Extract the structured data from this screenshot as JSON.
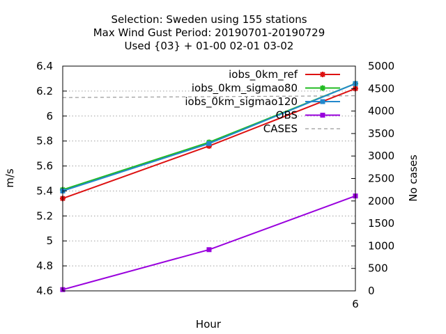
{
  "chart_data": {
    "type": "line",
    "title_lines": [
      "Selection: Sweden using   155 stations",
      "Max Wind Gust   Period: 20190701-20190729",
      "Used {03} + 01-00 02-01 03-02"
    ],
    "xlabel": "Hour",
    "ylabel": "m/s",
    "y2label": "No cases",
    "x": [
      0,
      3,
      6
    ],
    "x_tick_labels": [
      {
        "value": 6,
        "label": "6"
      }
    ],
    "xlim": [
      0,
      6
    ],
    "ylim": [
      4.6,
      6.4
    ],
    "y_ticks": [
      4.6,
      4.8,
      5,
      5.2,
      5.4,
      5.6,
      5.8,
      6,
      6.2,
      6.4
    ],
    "y_tick_labels": [
      "4.6",
      "4.8",
      "5",
      "5.2",
      "5.4",
      "5.6",
      "5.8",
      "6",
      "6.2",
      "6.4"
    ],
    "y2lim": [
      0,
      5000
    ],
    "y2_ticks": [
      0,
      500,
      1000,
      1500,
      2000,
      2500,
      3000,
      3500,
      4000,
      4500,
      5000
    ],
    "y2_tick_labels": [
      "0",
      "500",
      "1000",
      "1500",
      "2000",
      "2500",
      "3000",
      "3500",
      "4000",
      "4500",
      "5000"
    ],
    "grid": "horizontal-dotted",
    "legend_position": "top-right",
    "series": [
      {
        "name": "iobs_0km_ref",
        "color": "#dd1111",
        "axis": "y",
        "marker": "star",
        "dashed": false,
        "values": [
          5.34,
          5.76,
          6.22
        ]
      },
      {
        "name": "iobs_0km_sigmao80",
        "color": "#22bb22",
        "axis": "y",
        "marker": "star",
        "dashed": false,
        "values": [
          5.41,
          5.79,
          6.26
        ]
      },
      {
        "name": "iobs_0km_sigmao120",
        "color": "#2288cc",
        "axis": "y",
        "marker": "square",
        "dashed": false,
        "values": [
          5.4,
          5.78,
          6.26
        ]
      },
      {
        "name": "OBS",
        "color": "#9900dd",
        "axis": "y",
        "marker": "square",
        "dashed": false,
        "values": [
          4.61,
          4.93,
          5.36
        ]
      },
      {
        "name": "CASES",
        "color": "#999999",
        "axis": "y2",
        "marker": "none",
        "dashed": true,
        "values": [
          4300,
          4320,
          4340
        ]
      }
    ]
  }
}
